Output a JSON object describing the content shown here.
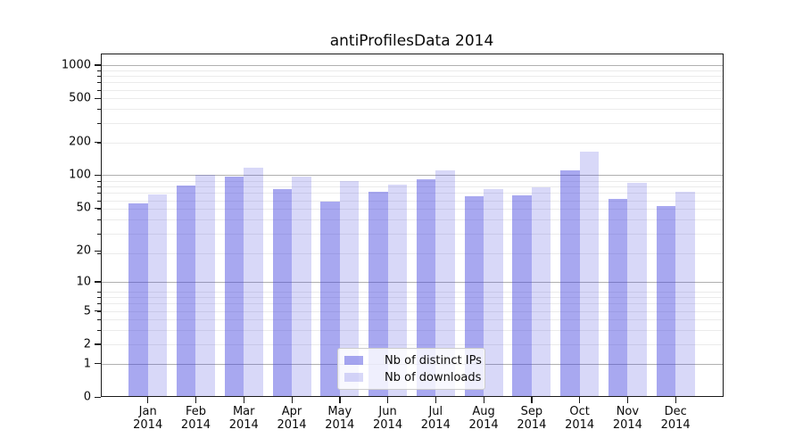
{
  "chart_data": {
    "type": "bar",
    "title": "antiProfilesData 2014",
    "year_label": "2014",
    "categories": [
      "Jan",
      "Feb",
      "Mar",
      "Apr",
      "May",
      "Jun",
      "Jul",
      "Aug",
      "Sep",
      "Oct",
      "Nov",
      "Dec"
    ],
    "series": [
      {
        "name": "Nb of distinct IPs",
        "color": "rgba(62,62,221,0.45)",
        "values": [
          55,
          80,
          97,
          74,
          57,
          70,
          91,
          64,
          65,
          110,
          61,
          52
        ]
      },
      {
        "name": "Nb of downloads",
        "color": "rgba(62,62,221,0.20)",
        "values": [
          67,
          100,
          118,
          97,
          88,
          82,
          110,
          75,
          78,
          164,
          85,
          71
        ]
      }
    ],
    "xlabel": "",
    "ylabel": "",
    "y_axis": {
      "scale": "log1p",
      "tick_labels": [
        0,
        1,
        2,
        5,
        10,
        20,
        50,
        100,
        200,
        500,
        1000
      ],
      "major_grid_values": [
        1,
        10,
        100,
        1000
      ],
      "ylim": [
        0,
        1300
      ],
      "grid": true
    },
    "legend": {
      "position": "lower center",
      "frame": true
    },
    "colors": {
      "major_grid": "#b0b0b0",
      "minor_grid": "#ebebeb",
      "spine": "#1a1a1a",
      "text": "#0a0a0a",
      "background": "#ffffff"
    }
  }
}
